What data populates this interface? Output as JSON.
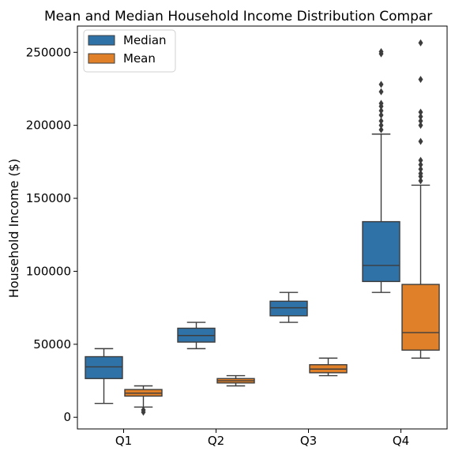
{
  "chart_data": {
    "type": "box",
    "title": "Mean and Median Household Income Distribution Compar",
    "xlabel": "",
    "ylabel": "Household Income ($)",
    "categories": [
      "Q1",
      "Q2",
      "Q3",
      "Q4"
    ],
    "ylim": [
      -8000,
      268000
    ],
    "yticks": [
      0,
      50000,
      100000,
      150000,
      200000,
      250000
    ],
    "ytick_labels": [
      "0",
      "50000",
      "100000",
      "150000",
      "200000",
      "250000"
    ],
    "legend_position": "top-left",
    "grid": false,
    "series": [
      {
        "name": "Median",
        "color": "#2f72a8",
        "boxes": [
          {
            "category": "Q1",
            "whisker_low": 9500,
            "q1": 26500,
            "median": 34500,
            "q3": 41500,
            "whisker_high": 47000,
            "outliers": []
          },
          {
            "category": "Q2",
            "whisker_low": 47000,
            "q1": 51500,
            "median": 56000,
            "q3": 61000,
            "whisker_high": 65000,
            "outliers": []
          },
          {
            "category": "Q3",
            "whisker_low": 65000,
            "q1": 69500,
            "median": 75000,
            "q3": 79500,
            "whisker_high": 85500,
            "outliers": []
          },
          {
            "category": "Q4",
            "whisker_low": 85500,
            "q1": 93000,
            "median": 104000,
            "q3": 134000,
            "whisker_high": 194000,
            "outliers": [
              197000,
              200000,
              203000,
              207000,
              210000,
              213000,
              215000,
              223000,
              228000,
              249000,
              250500
            ]
          }
        ]
      },
      {
        "name": "Mean",
        "color": "#e0812a",
        "boxes": [
          {
            "category": "Q1",
            "whisker_low": 7000,
            "q1": 14500,
            "median": 16500,
            "q3": 19000,
            "whisker_high": 21500,
            "outliers": [
              3500,
              5000
            ]
          },
          {
            "category": "Q2",
            "whisker_low": 21500,
            "q1": 23500,
            "median": 25000,
            "q3": 26500,
            "whisker_high": 28500,
            "outliers": []
          },
          {
            "category": "Q3",
            "whisker_low": 28500,
            "q1": 30500,
            "median": 33000,
            "q3": 36000,
            "whisker_high": 40500,
            "outliers": []
          },
          {
            "category": "Q4",
            "whisker_low": 40500,
            "q1": 46000,
            "median": 58000,
            "q3": 91000,
            "whisker_high": 159000,
            "outliers": [
              162000,
              165000,
              167000,
              170000,
              173000,
              176000,
              189000,
              200000,
              203000,
              206000,
              209000,
              231500,
              256500
            ]
          }
        ]
      }
    ]
  }
}
